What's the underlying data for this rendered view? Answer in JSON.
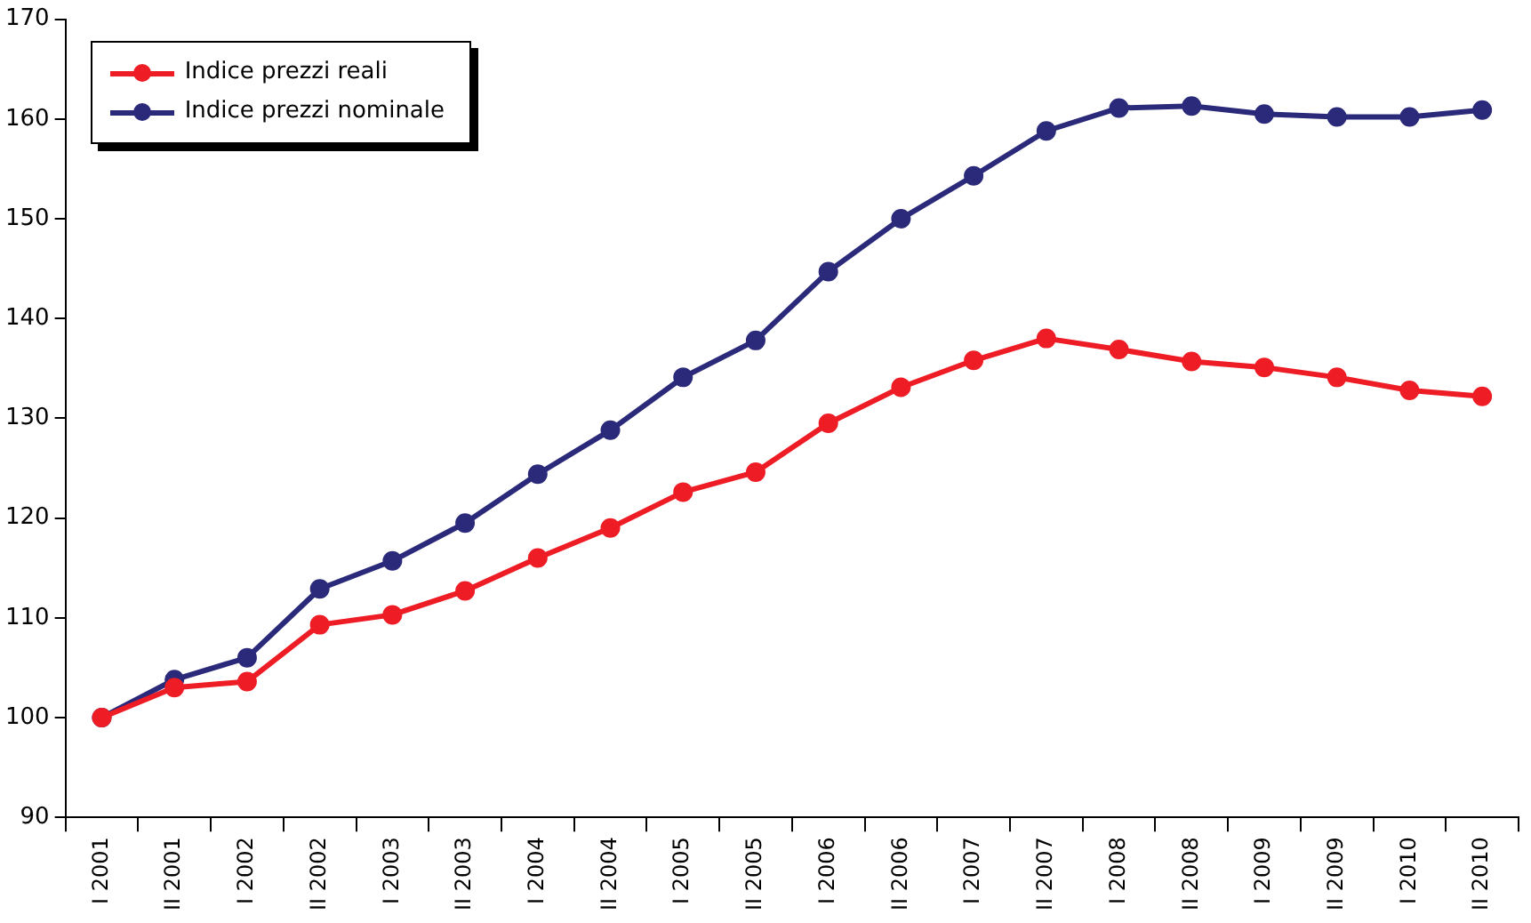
{
  "chart_data": {
    "type": "line",
    "categories": [
      "I 2001",
      "II 2001",
      "I 2002",
      "II 2002",
      "I 2003",
      "II 2003",
      "I 2004",
      "II 2004",
      "I 2005",
      "II 2005",
      "I 2006",
      "II 2006",
      "I 2007",
      "II 2007",
      "I 2008",
      "II 2008",
      "I 2009",
      "II 2009",
      "I 2010",
      "II 2010"
    ],
    "series": [
      {
        "name": "Indice prezzi reali",
        "color": "#ee1c25",
        "values": [
          100,
          103.0,
          103.6,
          109.3,
          110.3,
          112.7,
          116.0,
          119.0,
          122.6,
          124.6,
          129.5,
          133.1,
          135.8,
          138.0,
          136.9,
          135.7,
          135.1,
          134.1,
          132.8,
          132.2
        ]
      },
      {
        "name": "Indice prezzi nominale",
        "color": "#2b2a7a",
        "values": [
          100,
          103.8,
          106.0,
          112.9,
          115.7,
          119.5,
          124.4,
          128.8,
          134.1,
          137.8,
          144.7,
          150.0,
          154.3,
          158.8,
          161.1,
          161.3,
          160.5,
          160.2,
          160.2,
          160.9
        ]
      }
    ],
    "ylim": [
      90,
      170
    ],
    "yticks": [
      90,
      100,
      110,
      120,
      130,
      140,
      150,
      160,
      170
    ],
    "grid": false,
    "legend": "top left",
    "marker": "circle",
    "line_style": "solid"
  }
}
